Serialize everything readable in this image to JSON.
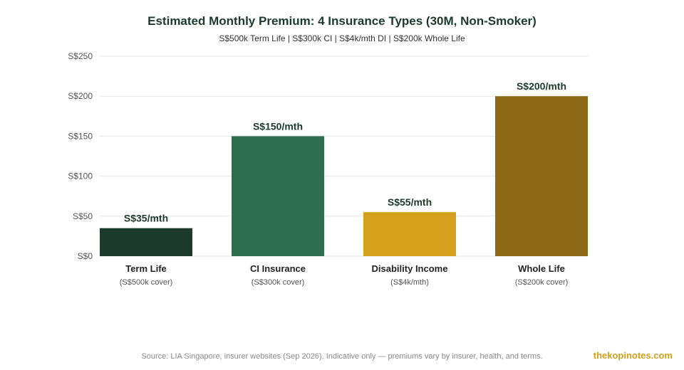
{
  "colors": {
    "title": "#1b3a2b",
    "data_label": "#1b3a2b",
    "brand": "#d4a01c"
  },
  "footer": {
    "source": "Source: LIA Singapore, insurer websites (Sep 2026). Indicative only — premiums vary by insurer, health, and terms.",
    "brand": "thekopinotes.com"
  },
  "chart_data": {
    "type": "bar",
    "title": "Estimated Monthly Premium: 4 Insurance Types (30M, Non-Smoker)",
    "subtitle": "S$500k Term Life | S$300k CI | S$4k/mth DI | S$200k Whole Life",
    "xlabel": "",
    "ylabel": "",
    "ylim": [
      0,
      250
    ],
    "yticks": [
      0,
      50,
      100,
      150,
      200,
      250
    ],
    "ytick_labels": [
      "S$0",
      "S$50",
      "S$100",
      "S$150",
      "S$200",
      "S$250"
    ],
    "grid": true,
    "categories": [
      "Term Life",
      "CI Insurance",
      "Disability Income",
      "Whole Life"
    ],
    "category_sublabels": [
      "(S$500k cover)",
      "(S$300k cover)",
      "(S$4k/mth)",
      "(S$200k cover)"
    ],
    "values": [
      35,
      150,
      55,
      200
    ],
    "data_labels": [
      "S$35/mth",
      "S$150/mth",
      "S$55/mth",
      "S$200/mth"
    ],
    "bar_colors": [
      "#1b3a2b",
      "#2d6e50",
      "#d4a01c",
      "#8b6914"
    ]
  }
}
